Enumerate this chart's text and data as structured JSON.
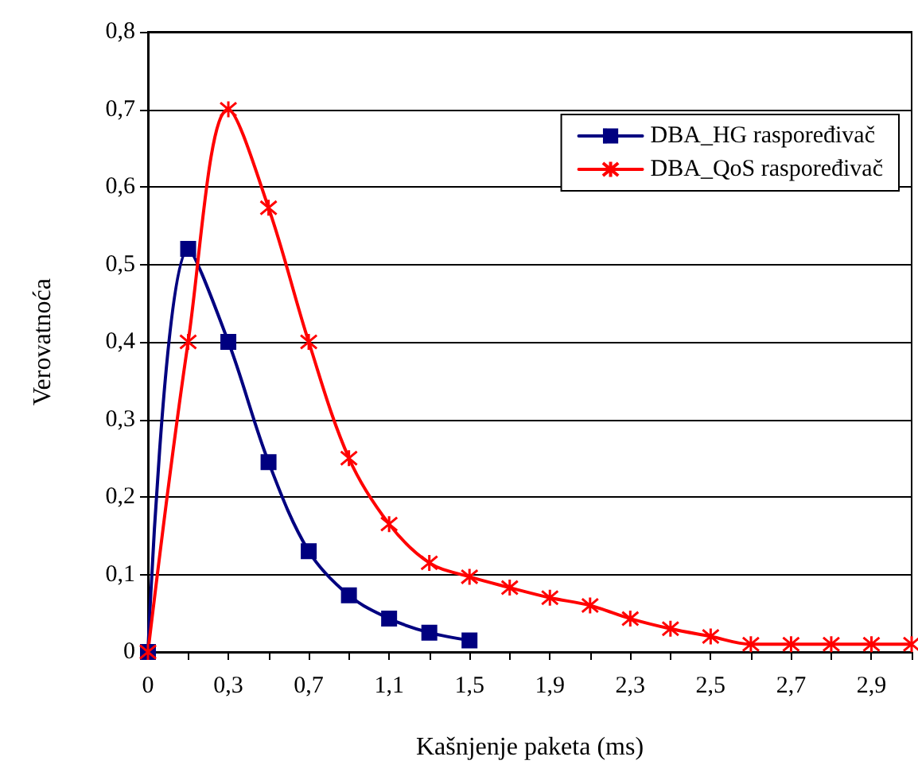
{
  "chart_data": {
    "type": "line",
    "xlabel": "Kašnjenje paketa (ms)",
    "ylabel": "Verovatnoća",
    "categories": [
      "0",
      null,
      "0,3",
      null,
      "0,7",
      null,
      "1,1",
      null,
      "1,5",
      null,
      "1,9",
      null,
      "2,3",
      null,
      "2,5",
      null,
      "2,7",
      null,
      "2,9",
      null
    ],
    "series": [
      {
        "name": "DBA_HG raspoređivač",
        "color": "#000080",
        "marker": "square",
        "values": [
          0,
          0.52,
          0.4,
          0.245,
          0.13,
          0.073,
          0.043,
          0.025,
          0.015,
          null,
          null,
          null,
          null,
          null,
          null,
          null,
          null,
          null,
          null,
          null
        ]
      },
      {
        "name": "DBA_QoS raspoređivač",
        "color": "#ff0000",
        "marker": "cross",
        "values": [
          0,
          0.4,
          0.7,
          0.573,
          0.4,
          0.25,
          0.165,
          0.115,
          0.097,
          0.083,
          0.07,
          0.06,
          0.043,
          0.03,
          0.02,
          0.01,
          0.01,
          0.01,
          0.01,
          0.01
        ]
      }
    ],
    "ylim": [
      0,
      0.8
    ],
    "yticks": [
      {
        "value": 0,
        "label": "0"
      },
      {
        "value": 0.1,
        "label": "0,1"
      },
      {
        "value": 0.2,
        "label": "0,2"
      },
      {
        "value": 0.3,
        "label": "0,3"
      },
      {
        "value": 0.4,
        "label": "0,4"
      },
      {
        "value": 0.5,
        "label": "0,5"
      },
      {
        "value": 0.6,
        "label": "0,6"
      },
      {
        "value": 0.7,
        "label": "0,7"
      },
      {
        "value": 0.8,
        "label": "0,8"
      }
    ],
    "grid": "y",
    "legend": "top right"
  }
}
